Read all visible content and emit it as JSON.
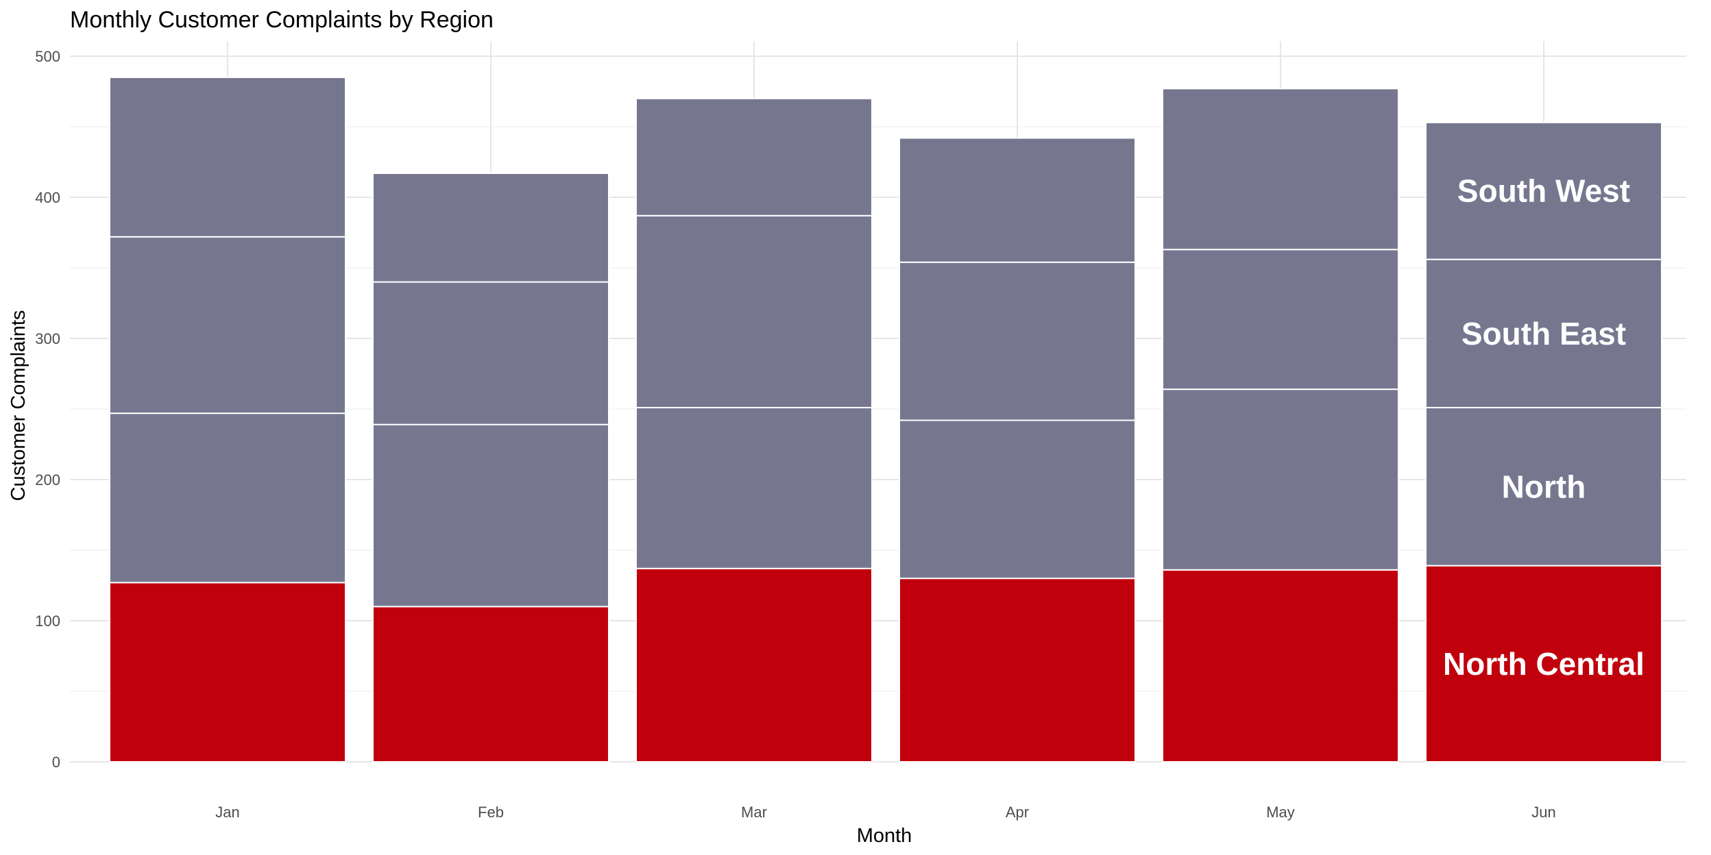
{
  "chart_data": {
    "type": "bar",
    "stacked": true,
    "title": "Monthly Customer Complaints by Region",
    "xlabel": "Month",
    "ylabel": "Customer Complaints",
    "categories": [
      "Jan",
      "Feb",
      "Mar",
      "Apr",
      "May",
      "Jun"
    ],
    "ylim": [
      0,
      500
    ],
    "yticks": [
      0,
      100,
      200,
      300,
      400,
      500
    ],
    "grid": true,
    "series": [
      {
        "name": "North Central",
        "values": [
          127,
          110,
          137,
          130,
          136,
          139
        ],
        "color": "#c0000d"
      },
      {
        "name": "North",
        "values": [
          120,
          129,
          114,
          112,
          128,
          112
        ],
        "color": "#76778f"
      },
      {
        "name": "South East",
        "values": [
          125,
          101,
          136,
          112,
          99,
          105
        ],
        "color": "#76778f"
      },
      {
        "name": "South West",
        "values": [
          113,
          77,
          83,
          88,
          114,
          97
        ],
        "color": "#76778f"
      }
    ],
    "labeled_category": "Jun",
    "bar_outline_color": "#ffffff"
  }
}
